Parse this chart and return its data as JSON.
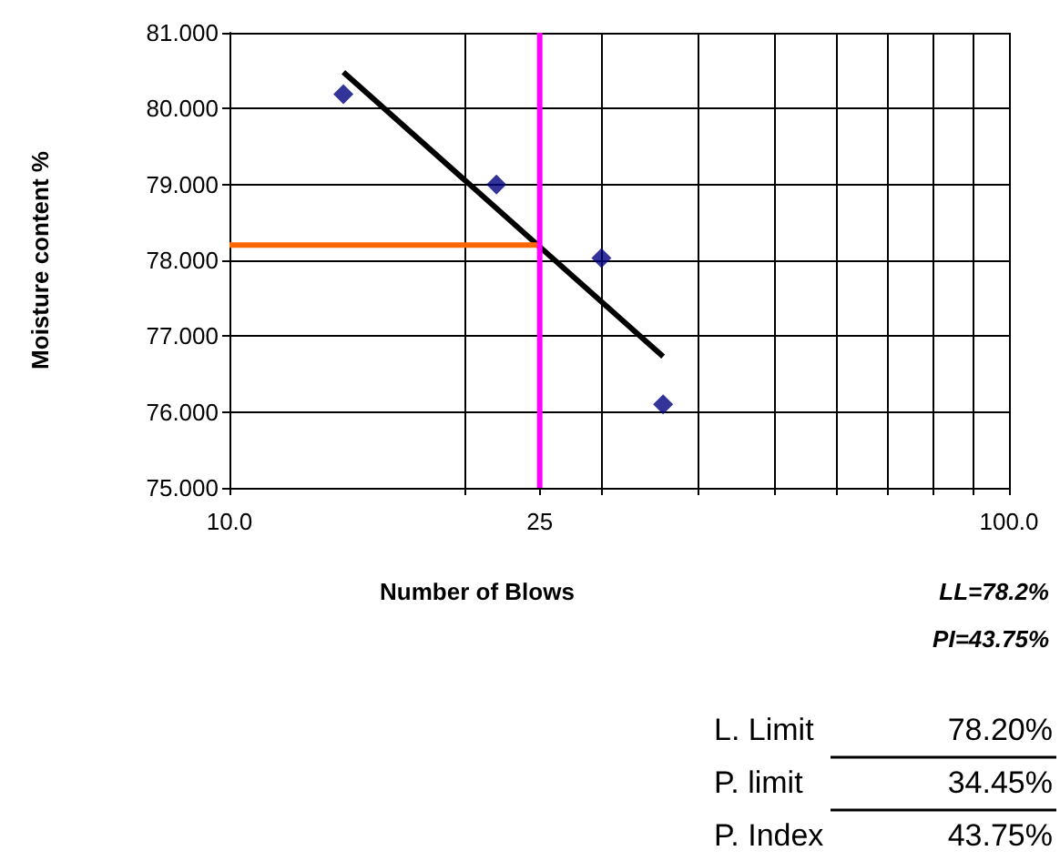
{
  "chart_data": {
    "type": "scatter",
    "xlabel": "Number of Blows",
    "ylabel": "Moisture content %",
    "log": "x",
    "xlim": [
      10,
      100
    ],
    "ylim": [
      75,
      81
    ],
    "xticks": [
      {
        "value": 10,
        "label": "10.0"
      },
      {
        "value": 20,
        "label": null
      },
      25,
      {
        "value": 30,
        "label": null
      },
      {
        "value": 40,
        "label": null
      },
      {
        "value": 50,
        "label": null
      },
      {
        "value": 60,
        "label": null
      },
      {
        "value": 70,
        "label": null
      },
      {
        "value": 80,
        "label": null
      },
      {
        "value": 90,
        "label": null
      },
      {
        "value": 100,
        "label": "100.0"
      }
    ],
    "yticks": [
      {
        "value": 75,
        "label": "75.000"
      },
      {
        "value": 76,
        "label": "76.000"
      },
      {
        "value": 77,
        "label": "77.000"
      },
      {
        "value": 78,
        "label": "78.000"
      },
      {
        "value": 79,
        "label": "79.000"
      },
      {
        "value": 80,
        "label": "80.000"
      },
      {
        "value": 81,
        "label": "81.000"
      }
    ],
    "grid": true,
    "marker": "diamond",
    "series": [
      {
        "color": "#000080",
        "x": [
          14,
          22,
          30,
          36
        ],
        "values": [
          80.19,
          79.0,
          78.03,
          76.1
        ]
      },
      {
        "type": "line",
        "marker": "none",
        "color": "#000000",
        "x": [
          14,
          36
        ],
        "values": [
          80.48,
          76.73
        ]
      },
      {
        "type": "line",
        "marker": "none",
        "color": "#ff6600",
        "x": [
          10,
          25
        ],
        "values": [
          78.2,
          78.2
        ]
      },
      {
        "type": "line",
        "marker": "none",
        "color": "#ff00ff",
        "x": [
          25,
          25
        ],
        "values": [
          75,
          81
        ]
      }
    ],
    "annotations": [
      "LL=78.2%",
      "PI=43.75%",
      "L. Limit",
      "78.20%",
      "P. limit",
      "34.45%",
      "P. Index",
      "43.75%"
    ]
  }
}
